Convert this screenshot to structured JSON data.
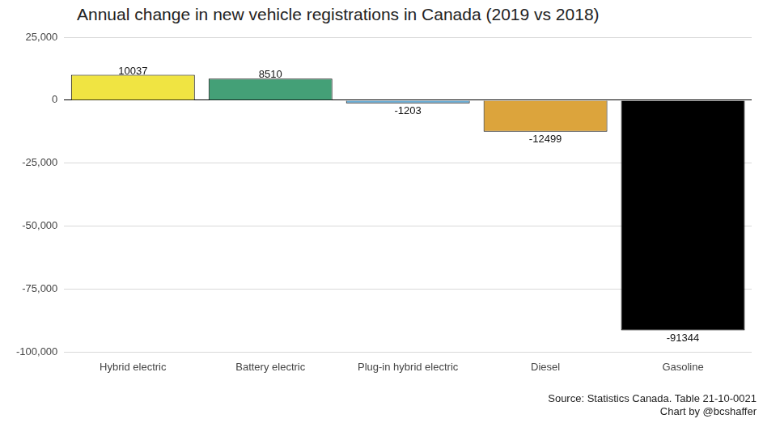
{
  "chart_data": {
    "type": "bar",
    "title": "Annual change in new vehicle registrations in Canada (2019 vs 2018)",
    "caption": [
      "Source: Statistics Canada. Table 21-10-0021",
      "Chart by @bcshaffer"
    ],
    "categories": [
      "Hybrid electric",
      "Battery electric",
      "Plug-in hybrid electric",
      "Diesel",
      "Gasoline"
    ],
    "values": [
      10037,
      8510,
      -1203,
      -12499,
      -91344
    ],
    "colors": [
      "#f0e442",
      "#44a077",
      "#6aaed6",
      "#dca43c",
      "#000000"
    ],
    "ylim": [
      -100000,
      25000
    ],
    "yticks": [
      {
        "value": -100000,
        "label": "-100,000"
      },
      {
        "value": -75000,
        "label": "-75,000"
      },
      {
        "value": -50000,
        "label": "-50,000"
      },
      {
        "value": -25000,
        "label": "-25,000"
      },
      0,
      {
        "value": 25000,
        "label": "25,000"
      }
    ],
    "grid": true,
    "data_labels": true
  }
}
